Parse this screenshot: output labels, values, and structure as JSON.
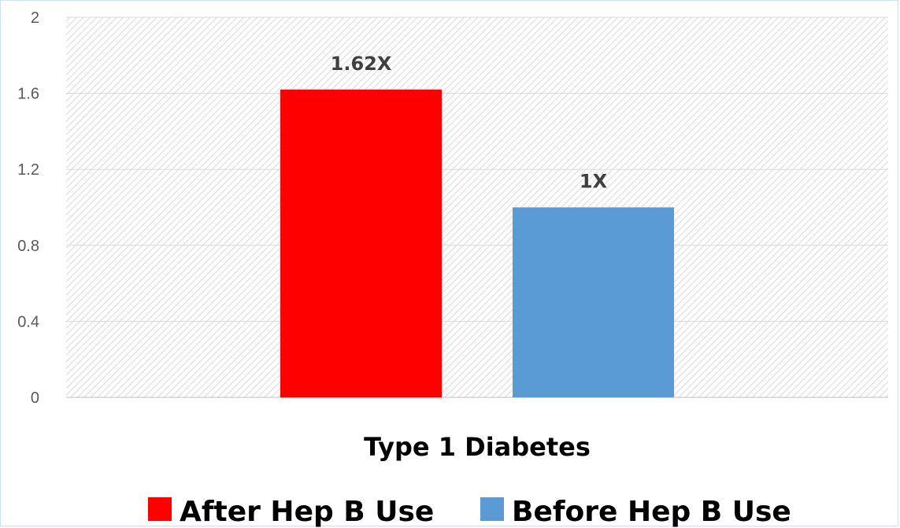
{
  "chart_data": {
    "type": "bar",
    "categories": [
      "Type 1 Diabetes"
    ],
    "series": [
      {
        "name": "After Hep B Use",
        "values": [
          1.62
        ],
        "label": "1.62X",
        "color": "#ff0000"
      },
      {
        "name": "Before Hep B Use",
        "values": [
          1.0
        ],
        "label": "1X",
        "color": "#5b9bd5"
      }
    ],
    "ylim": [
      0,
      2
    ],
    "yticks": [
      "0",
      "0.4",
      "0.8",
      "1.2",
      "1.6",
      "2"
    ],
    "grid": true,
    "legend_position": "bottom",
    "title": "",
    "xlabel": "",
    "ylabel": ""
  }
}
